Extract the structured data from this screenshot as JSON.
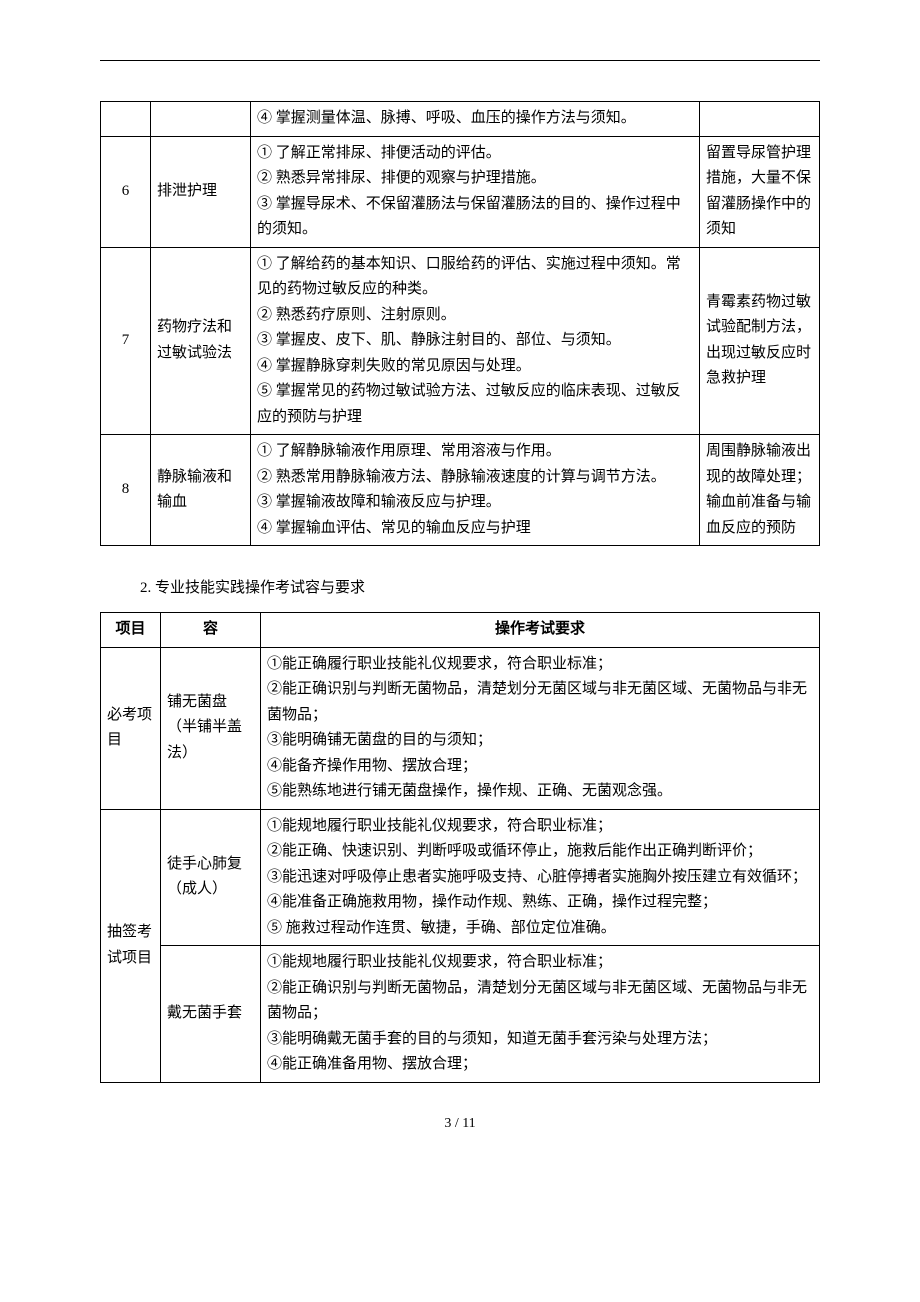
{
  "table1": {
    "rows": [
      {
        "num": "",
        "topic": "",
        "details": "④ 掌握测量体温、脉搏、呼吸、血压的操作方法与须知。",
        "remark": ""
      },
      {
        "num": "6",
        "topic": "排泄护理",
        "details": "① 了解正常排尿、排便活动的评估。\n② 熟悉异常排尿、排便的观察与护理措施。\n③ 掌握导尿术、不保留灌肠法与保留灌肠法的目的、操作过程中的须知。",
        "remark": "留置导尿管护理措施，大量不保留灌肠操作中的须知"
      },
      {
        "num": "7",
        "topic": "药物疗法和过敏试验法",
        "details": "① 了解给药的基本知识、口服给药的评估、实施过程中须知。常见的药物过敏反应的种类。\n② 熟悉药疗原则、注射原则。\n③ 掌握皮、皮下、肌、静脉注射目的、部位、与须知。\n④ 掌握静脉穿刺失败的常见原因与处理。\n⑤ 掌握常见的药物过敏试验方法、过敏反应的临床表现、过敏反应的预防与护理",
        "remark": "青霉素药物过敏试验配制方法，出现过敏反应时急救护理"
      },
      {
        "num": "8",
        "topic": "静脉输液和输血",
        "details": "① 了解静脉输液作用原理、常用溶液与作用。\n② 熟悉常用静脉输液方法、静脉输液速度的计算与调节方法。\n③ 掌握输液故障和输液反应与护理。\n④ 掌握输血评估、常见的输血反应与护理",
        "remark": "周围静脉输液出现的故障处理；输血前准备与输血反应的预防"
      }
    ]
  },
  "sectionHeading": "2.  专业技能实践操作考试容与要求",
  "table2": {
    "headers": {
      "project": "项目",
      "content": "容",
      "requirement": "操作考试要求"
    },
    "rows": [
      {
        "project": "必考项目",
        "projectRowspan": 1,
        "content": "铺无菌盘（半铺半盖法）",
        "requirement": "①能正确履行职业技能礼仪规要求，符合职业标准；\n②能正确识别与判断无菌物品，清楚划分无菌区域与非无菌区域、无菌物品与非无菌物品；\n③能明确铺无菌盘的目的与须知；\n④能备齐操作用物、摆放合理；\n⑤能熟练地进行铺无菌盘操作，操作规、正确、无菌观念强。"
      },
      {
        "project": "抽签考试项目",
        "projectRowspan": 2,
        "content": "徒手心肺复（成人）",
        "requirement": "①能规地履行职业技能礼仪规要求，符合职业标准；\n②能正确、快速识别、判断呼吸或循环停止，施救后能作出正确判断评价；\n③能迅速对呼吸停止患者实施呼吸支持、心脏停搏者实施胸外按压建立有效循环；\n④能准备正确施救用物，操作动作规、熟练、正确，操作过程完整；\n⑤ 施救过程动作连贯、敏捷，手确、部位定位准确。"
      },
      {
        "project": "",
        "projectRowspan": 0,
        "content": "戴无菌手套",
        "requirement": "①能规地履行职业技能礼仪规要求，符合职业标准；\n②能正确识别与判断无菌物品，清楚划分无菌区域与非无菌区域、无菌物品与非无菌物品；\n③能明确戴无菌手套的目的与须知，知道无菌手套污染与处理方法；\n④能正确准备用物、摆放合理；"
      }
    ]
  },
  "pageNumber": "3 / 11"
}
